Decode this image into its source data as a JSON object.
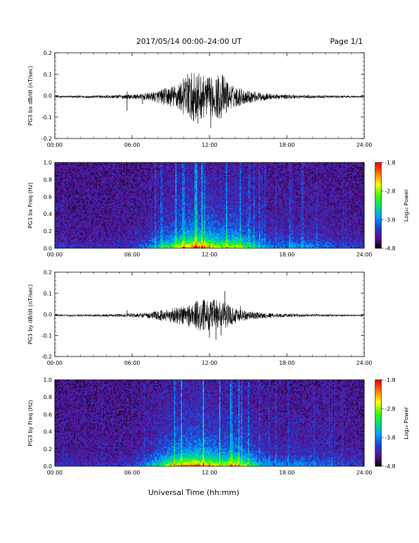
{
  "header": {
    "title": "2017/05/14  00:00–24:00 UT",
    "page": "Page 1/1"
  },
  "xlabel": "Universal Time (hh:mm)",
  "x_ticks": [
    "00:00",
    "06:00",
    "12:00",
    "18:00",
    "24:00"
  ],
  "colorbar": {
    "label": "Log₁₀ Power",
    "ticks": [
      "-1.8",
      "-2.8",
      "-3.8",
      "-4.8"
    ],
    "range": [
      -4.8,
      -1.8
    ],
    "colors": [
      "#000000",
      "#5a1090",
      "#2040d0",
      "#00a0ff",
      "#00e080",
      "#40ff00",
      "#ffff00",
      "#ff8000",
      "#ff0000"
    ]
  },
  "chart_data": [
    {
      "type": "line",
      "id": "bx-dbdt",
      "ylabel": "PG3 bx dB/dt (nT/sec)",
      "x_range_hours": [
        0,
        24
      ],
      "ylim": [
        -0.2,
        0.2
      ],
      "y_ticks": [
        "0.2",
        "0.1",
        "0.0",
        "-0.1",
        "-0.2"
      ],
      "series": [
        {
          "x_hours": [
            0,
            1.5,
            3,
            4.5,
            5.5,
            6.5,
            7.5,
            8.5,
            9.5,
            10.0,
            10.5,
            11.0,
            11.5,
            12.0,
            12.5,
            13.0,
            13.5,
            14.0,
            14.5,
            15.0,
            16.0,
            17.0,
            18.0,
            19.5,
            21,
            22.5,
            24
          ],
          "envelope": [
            0.004,
            0.005,
            0.006,
            0.008,
            0.01,
            0.012,
            0.02,
            0.04,
            0.06,
            0.09,
            0.11,
            0.12,
            0.1,
            0.09,
            0.1,
            0.11,
            0.06,
            0.05,
            0.04,
            0.03,
            0.02,
            0.012,
            0.01,
            0.008,
            0.006,
            0.005,
            0.004
          ],
          "spikes": [
            {
              "x_hours": 5.6,
              "value": -0.07
            },
            {
              "x_hours": 5.6,
              "value": 0.02
            },
            {
              "x_hours": 6.8,
              "value": -0.04
            },
            {
              "x_hours": 10.3,
              "value": 0.1
            },
            {
              "x_hours": 10.6,
              "value": -0.11
            },
            {
              "x_hours": 11.1,
              "value": -0.13
            },
            {
              "x_hours": 12.1,
              "value": -0.15
            },
            {
              "x_hours": 13.4,
              "value": 0.06
            }
          ]
        }
      ]
    },
    {
      "type": "heatmap",
      "id": "bx-spectrogram",
      "ylabel": "PG3 bx Freq (Hz)",
      "x_range_hours": [
        0,
        24
      ],
      "ylim": [
        0.0,
        1.0
      ],
      "y_ticks": [
        "1.0",
        "0.8",
        "0.6",
        "0.4",
        "0.2",
        "0.0"
      ],
      "colorbar": "Log₁₀ Power",
      "activity": {
        "x_hours": [
          0,
          2,
          4,
          6,
          7,
          8,
          9,
          10,
          11,
          12,
          13,
          14,
          15,
          16,
          17,
          18,
          19,
          20,
          21,
          22,
          24
        ],
        "level": [
          0.15,
          0.1,
          0.1,
          0.15,
          0.25,
          0.45,
          0.6,
          0.8,
          0.9,
          0.8,
          0.7,
          0.75,
          0.55,
          0.4,
          0.3,
          0.3,
          0.35,
          0.3,
          0.25,
          0.2,
          0.15
        ]
      }
    },
    {
      "type": "line",
      "id": "by-dbdt",
      "ylabel": "PG3 by dB/dt (nT/sec)",
      "x_range_hours": [
        0,
        24
      ],
      "ylim": [
        -0.2,
        0.2
      ],
      "y_ticks": [
        "0.2",
        "0.1",
        "0.0",
        "-0.1",
        "-0.2"
      ],
      "series": [
        {
          "x_hours": [
            0,
            1.5,
            3,
            4.5,
            5.5,
            6.5,
            7.5,
            8.5,
            9.5,
            10.0,
            10.5,
            11.0,
            11.5,
            12.0,
            12.5,
            13.0,
            13.5,
            14.0,
            14.5,
            15.0,
            16.0,
            17.0,
            18.0,
            19.5,
            21,
            22.5,
            24
          ],
          "envelope": [
            0.003,
            0.004,
            0.005,
            0.006,
            0.008,
            0.01,
            0.015,
            0.03,
            0.04,
            0.05,
            0.06,
            0.07,
            0.08,
            0.07,
            0.08,
            0.07,
            0.05,
            0.04,
            0.03,
            0.02,
            0.015,
            0.01,
            0.008,
            0.006,
            0.005,
            0.004,
            0.003
          ],
          "spikes": [
            {
              "x_hours": 5.6,
              "value": 0.02
            },
            {
              "x_hours": 11.6,
              "value": 0.05
            },
            {
              "x_hours": 12.0,
              "value": -0.11
            },
            {
              "x_hours": 12.5,
              "value": -0.12
            },
            {
              "x_hours": 12.9,
              "value": -0.1
            },
            {
              "x_hours": 13.2,
              "value": 0.11
            },
            {
              "x_hours": 14.4,
              "value": 0.04
            }
          ]
        }
      ]
    },
    {
      "type": "heatmap",
      "id": "by-spectrogram",
      "ylabel": "PG3 by Freq (Hz)",
      "x_range_hours": [
        0,
        24
      ],
      "ylim": [
        0.0,
        1.0
      ],
      "y_ticks": [
        "1.0",
        "0.8",
        "0.6",
        "0.4",
        "0.2",
        "0.0"
      ],
      "colorbar": "Log₁₀ Power",
      "activity": {
        "x_hours": [
          0,
          2,
          4,
          6,
          7,
          8,
          9,
          10,
          11,
          12,
          13,
          14,
          15,
          16,
          17,
          18,
          19,
          20,
          21,
          22,
          24
        ],
        "level": [
          0.15,
          0.12,
          0.12,
          0.15,
          0.3,
          0.5,
          0.7,
          0.85,
          0.9,
          0.8,
          0.7,
          0.8,
          0.6,
          0.4,
          0.3,
          0.3,
          0.35,
          0.3,
          0.25,
          0.2,
          0.15
        ]
      }
    }
  ]
}
